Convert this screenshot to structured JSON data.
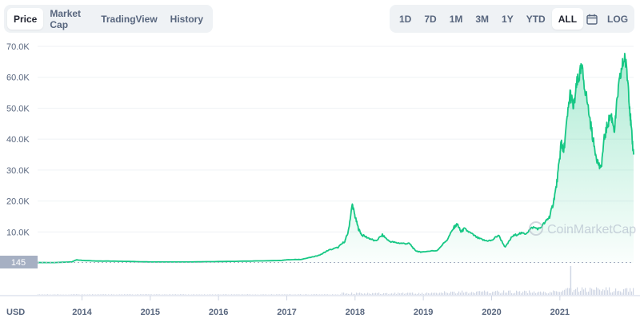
{
  "tabs": {
    "left": [
      {
        "label": "Price",
        "active": true
      },
      {
        "label": "Market Cap",
        "active": false
      },
      {
        "label": "TradingView",
        "active": false
      },
      {
        "label": "History",
        "active": false
      }
    ],
    "ranges": [
      {
        "label": "1D",
        "active": false
      },
      {
        "label": "7D",
        "active": false
      },
      {
        "label": "1M",
        "active": false
      },
      {
        "label": "3M",
        "active": false
      },
      {
        "label": "1Y",
        "active": false
      },
      {
        "label": "YTD",
        "active": false
      },
      {
        "label": "ALL",
        "active": true
      }
    ],
    "calendar_icon": "calendar-icon",
    "log_label": "LOG"
  },
  "watermark": "CoinMarketCap",
  "currency_label": "USD",
  "start_price_label": "145",
  "colors": {
    "line": "#16c784",
    "fill_top": "#16c784",
    "grid": "#eff2f5",
    "text": "#58667e",
    "volume": "#cfd6e4",
    "marker_bg": "#a6b0c3"
  },
  "chart_data": {
    "type": "area",
    "ylabel": "",
    "xlabel": "",
    "ylim": [
      -9500,
      70000
    ],
    "xlim": [
      2013.35,
      2022.08
    ],
    "y_ticks": [
      {
        "value": 10000,
        "label": "10.0K"
      },
      {
        "value": 20000,
        "label": "20.0K"
      },
      {
        "value": 30000,
        "label": "30.0K"
      },
      {
        "value": 40000,
        "label": "40.0K"
      },
      {
        "value": 50000,
        "label": "50.0K"
      },
      {
        "value": 60000,
        "label": "60.0K"
      },
      {
        "value": 70000,
        "label": "70.0K"
      }
    ],
    "x_ticks": [
      {
        "value": 2014,
        "label": "2014"
      },
      {
        "value": 2015,
        "label": "2015"
      },
      {
        "value": 2016,
        "label": "2016"
      },
      {
        "value": 2017,
        "label": "2017"
      },
      {
        "value": 2018,
        "label": "2018"
      },
      {
        "value": 2019,
        "label": "2019"
      },
      {
        "value": 2020,
        "label": "2020"
      },
      {
        "value": 2021,
        "label": "2021"
      }
    ],
    "reference_line": 145,
    "series": [
      {
        "x": [
          2013.35,
          2013.6,
          2013.85,
          2013.92,
          2014.0,
          2014.2,
          2014.5,
          2014.8,
          2015.0,
          2015.5,
          2016.0,
          2016.5,
          2016.9,
          2017.0,
          2017.2,
          2017.4,
          2017.5,
          2017.6,
          2017.75,
          2017.85,
          2017.9,
          2017.96,
          2018.0,
          2018.05,
          2018.1,
          2018.2,
          2018.3,
          2018.4,
          2018.5,
          2018.6,
          2018.7,
          2018.8,
          2018.88,
          2018.95,
          2019.0,
          2019.2,
          2019.35,
          2019.45,
          2019.5,
          2019.55,
          2019.6,
          2019.7,
          2019.8,
          2019.9,
          2020.0,
          2020.1,
          2020.2,
          2020.3,
          2020.4,
          2020.5,
          2020.6,
          2020.7,
          2020.8,
          2020.85,
          2020.9,
          2020.95,
          2021.0,
          2021.02,
          2021.05,
          2021.1,
          2021.15,
          2021.2,
          2021.25,
          2021.28,
          2021.32,
          2021.38,
          2021.45,
          2021.5,
          2021.55,
          2021.6,
          2021.65,
          2021.7,
          2021.75,
          2021.8,
          2021.85,
          2021.9,
          2021.95,
          2022.0,
          2022.03,
          2022.05,
          2022.08
        ],
        "y": [
          120,
          110,
          300,
          1000,
          800,
          600,
          550,
          400,
          300,
          280,
          430,
          600,
          750,
          1000,
          1100,
          2000,
          2700,
          4000,
          5000,
          7000,
          10000,
          19000,
          15000,
          11000,
          9000,
          8000,
          7000,
          9000,
          7000,
          6500,
          6300,
          6200,
          4000,
          3500,
          3600,
          4000,
          7500,
          11500,
          12500,
          10000,
          11000,
          9500,
          8000,
          7200,
          7200,
          9000,
          5000,
          8500,
          9500,
          9500,
          11500,
          11000,
          13500,
          15000,
          19000,
          25000,
          34000,
          40000,
          35000,
          45000,
          55000,
          50000,
          58000,
          60000,
          63000,
          55000,
          45000,
          38000,
          33000,
          30000,
          40000,
          45000,
          48000,
          43000,
          55000,
          62000,
          67000,
          58000,
          48000,
          42000,
          35000
        ]
      }
    ]
  }
}
